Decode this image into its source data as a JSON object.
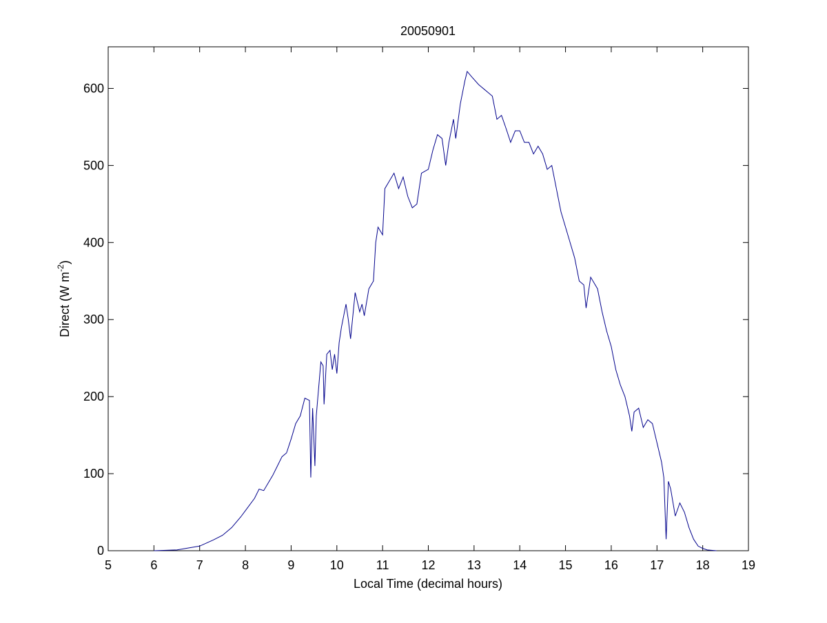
{
  "chart_data": {
    "type": "line",
    "title": "20050901",
    "xlabel": "Local Time (decimal hours)",
    "ylabel": {
      "text": "Direct (W m",
      "sup": "-2",
      "end": ")"
    },
    "color": "#00008b",
    "grid": false,
    "xlim": [
      5,
      19
    ],
    "xticks": [
      5,
      6,
      7,
      8,
      9,
      10,
      11,
      12,
      13,
      14,
      15,
      16,
      17,
      18,
      19
    ],
    "ylim": [
      0,
      654
    ],
    "yticks": [
      0,
      100,
      200,
      300,
      400,
      500,
      600
    ],
    "x": [
      6.0,
      6.5,
      7.0,
      7.3,
      7.5,
      7.7,
      7.9,
      8.0,
      8.2,
      8.3,
      8.4,
      8.5,
      8.6,
      8.7,
      8.8,
      8.9,
      9.0,
      9.1,
      9.2,
      9.3,
      9.4,
      9.43,
      9.47,
      9.52,
      9.55,
      9.6,
      9.65,
      9.7,
      9.72,
      9.78,
      9.85,
      9.9,
      9.95,
      10.0,
      10.05,
      10.1,
      10.2,
      10.25,
      10.3,
      10.4,
      10.5,
      10.55,
      10.6,
      10.7,
      10.8,
      10.85,
      10.9,
      11.0,
      11.05,
      11.15,
      11.25,
      11.35,
      11.45,
      11.55,
      11.65,
      11.75,
      11.85,
      12.0,
      12.1,
      12.2,
      12.3,
      12.38,
      12.45,
      12.55,
      12.6,
      12.7,
      12.8,
      12.85,
      12.95,
      13.1,
      13.2,
      13.3,
      13.4,
      13.5,
      13.6,
      13.7,
      13.8,
      13.9,
      14.0,
      14.1,
      14.2,
      14.3,
      14.4,
      14.5,
      14.6,
      14.7,
      14.8,
      14.9,
      15.0,
      15.1,
      15.2,
      15.3,
      15.4,
      15.45,
      15.55,
      15.7,
      15.8,
      15.9,
      16.0,
      16.1,
      16.2,
      16.3,
      16.4,
      16.45,
      16.5,
      16.6,
      16.7,
      16.8,
      16.9,
      17.0,
      17.1,
      17.15,
      17.2,
      17.25,
      17.3,
      17.4,
      17.5,
      17.6,
      17.7,
      17.8,
      17.9,
      18.0,
      18.1,
      18.3
    ],
    "y": [
      0,
      1,
      6,
      14,
      20,
      30,
      44,
      52,
      68,
      80,
      78,
      88,
      98,
      110,
      122,
      127,
      145,
      165,
      175,
      198,
      195,
      95,
      185,
      110,
      175,
      210,
      245,
      240,
      190,
      255,
      260,
      235,
      255,
      230,
      270,
      290,
      320,
      300,
      275,
      335,
      310,
      320,
      305,
      340,
      350,
      400,
      420,
      410,
      470,
      480,
      490,
      470,
      485,
      460,
      445,
      450,
      490,
      495,
      520,
      540,
      535,
      500,
      530,
      560,
      535,
      580,
      610,
      622,
      615,
      605,
      600,
      595,
      590,
      560,
      565,
      548,
      530,
      545,
      545,
      530,
      530,
      515,
      525,
      515,
      495,
      500,
      470,
      440,
      420,
      400,
      380,
      350,
      345,
      315,
      355,
      340,
      310,
      285,
      265,
      235,
      215,
      200,
      175,
      155,
      180,
      185,
      160,
      170,
      165,
      140,
      115,
      95,
      15,
      90,
      80,
      45,
      62,
      50,
      30,
      15,
      6,
      3,
      1,
      0
    ]
  }
}
